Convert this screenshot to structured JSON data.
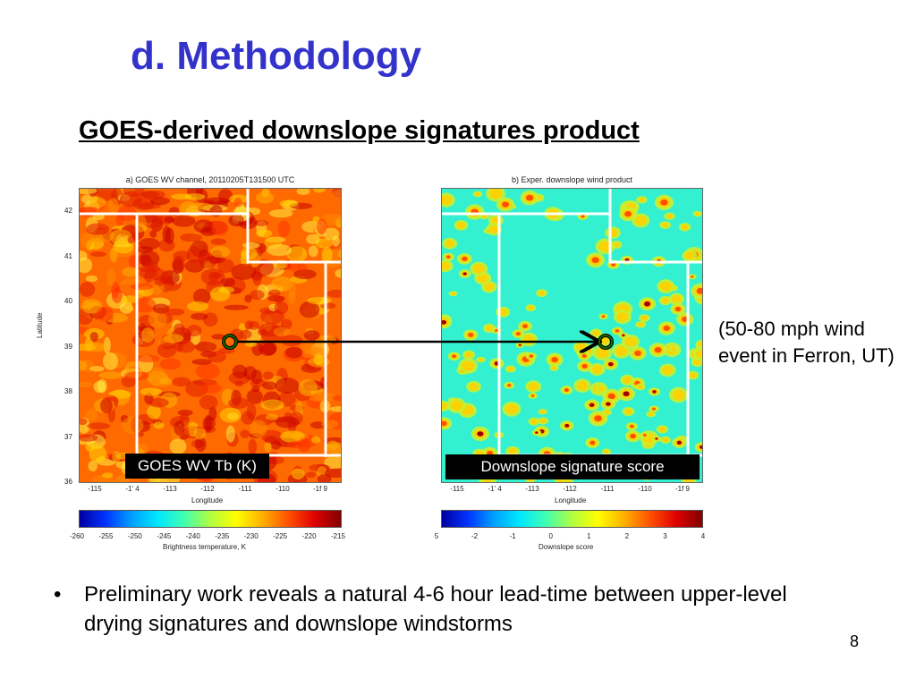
{
  "slide": {
    "title": "d. Methodology",
    "subtitle": "GOES-derived downslope signatures product",
    "note": "(50-80 mph wind event in Ferron, UT)",
    "bullet_symbol": "•",
    "bullet": "Preliminary work reveals a natural 4-6 hour lead-time between upper-level drying signatures and downslope windstorms",
    "page_number": "8"
  },
  "panel_a": {
    "title": "a) GOES WV channel,  20110205T131500 UTC",
    "tag": "GOES WV Tb (K)",
    "ylabel": "Latitude",
    "xlabel": "Longitude",
    "yticks": [
      "42",
      "41",
      "40",
      "39",
      "38",
      "37",
      "36"
    ],
    "xticks": [
      "-115",
      "-1' 4",
      "-113",
      "-112",
      "-111",
      "-110",
      "-1f 9"
    ],
    "colorbar_ticks": [
      "-260",
      "-255",
      "-250",
      "-245",
      "-240",
      "-235",
      "-230",
      "-225",
      "-220",
      "-215"
    ],
    "colorbar_label": "Brightness temperature, K"
  },
  "panel_b": {
    "title": "b) Exper. downslope wind product",
    "tag": "Downslope signature score",
    "xlabel": "Longitude",
    "xticks": [
      "-115",
      "-1' 4",
      "-113",
      "-112",
      "-111",
      "-110",
      "-1f 9"
    ],
    "colorbar_ticks": [
      "5",
      "-2",
      "-1",
      "0",
      "1",
      "2",
      "3",
      "4"
    ],
    "colorbar_label": "Downslope score"
  },
  "colors": {
    "title_blue": "#3333cc",
    "map_a_base": "#ff6a00",
    "map_b_base": "#33f0d0",
    "marker": "#1a6600"
  }
}
